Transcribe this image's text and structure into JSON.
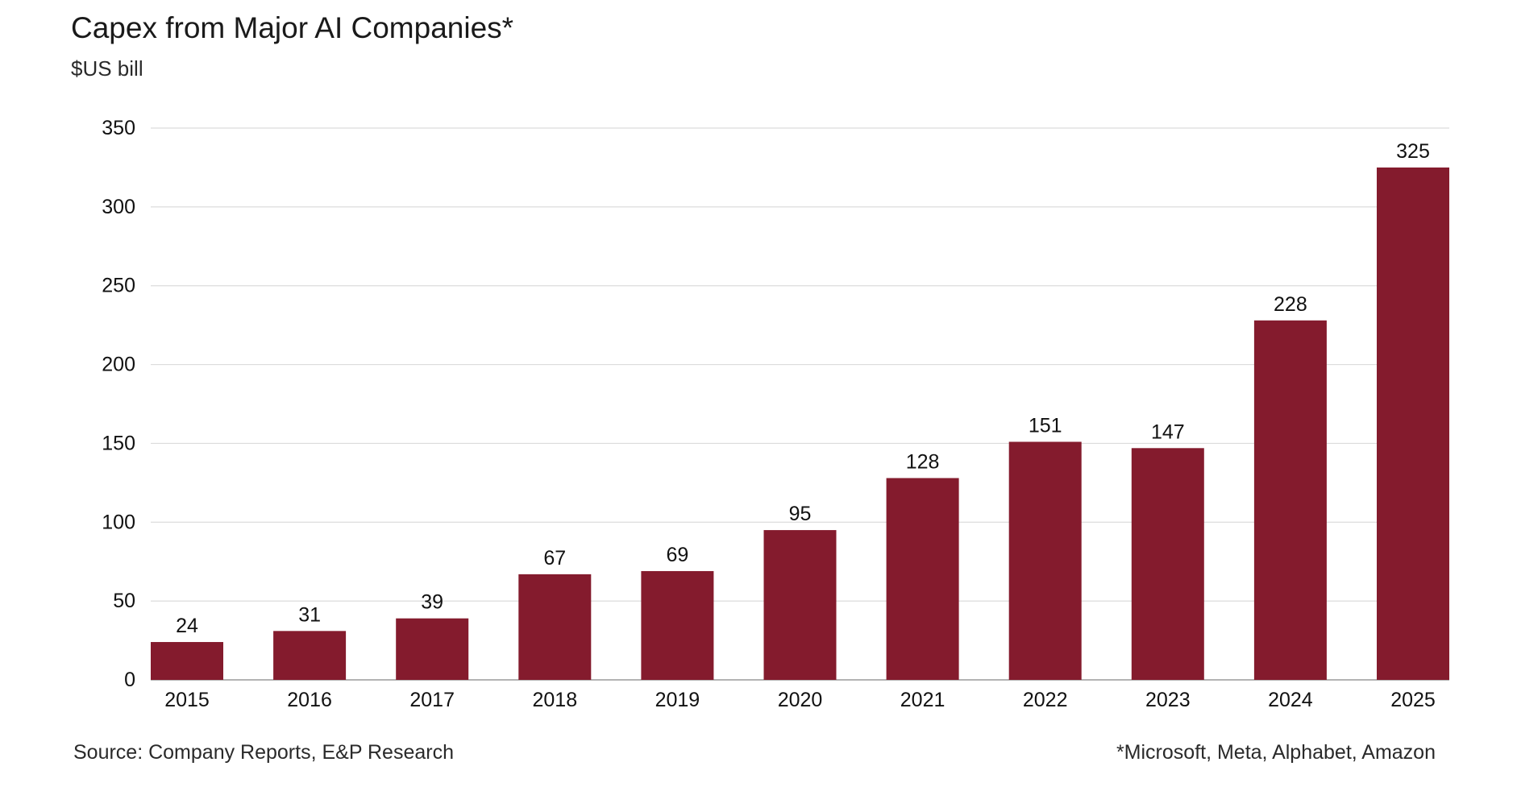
{
  "header": {
    "title": "Capex from Major AI Companies*",
    "subtitle": "$US bill"
  },
  "footer": {
    "source": "Source: Company Reports, E&P Research",
    "footnote": "*Microsoft, Meta, Alphabet, Amazon"
  },
  "chart_data": {
    "type": "bar",
    "title": "Capex from Major AI Companies*",
    "subtitle": "$US bill",
    "xlabel": "",
    "ylabel": "",
    "categories": [
      "2015",
      "2016",
      "2017",
      "2018",
      "2019",
      "2020",
      "2021",
      "2022",
      "2023",
      "2024",
      "2025"
    ],
    "values": [
      24,
      31,
      39,
      67,
      69,
      95,
      128,
      151,
      147,
      228,
      325
    ],
    "ylim": [
      0,
      350
    ],
    "yticks": [
      0,
      50,
      100,
      150,
      200,
      250,
      300,
      350
    ],
    "grid": true,
    "legend": "none",
    "bar_color": "#841B2D",
    "grid_color": "#dcdcdc"
  }
}
